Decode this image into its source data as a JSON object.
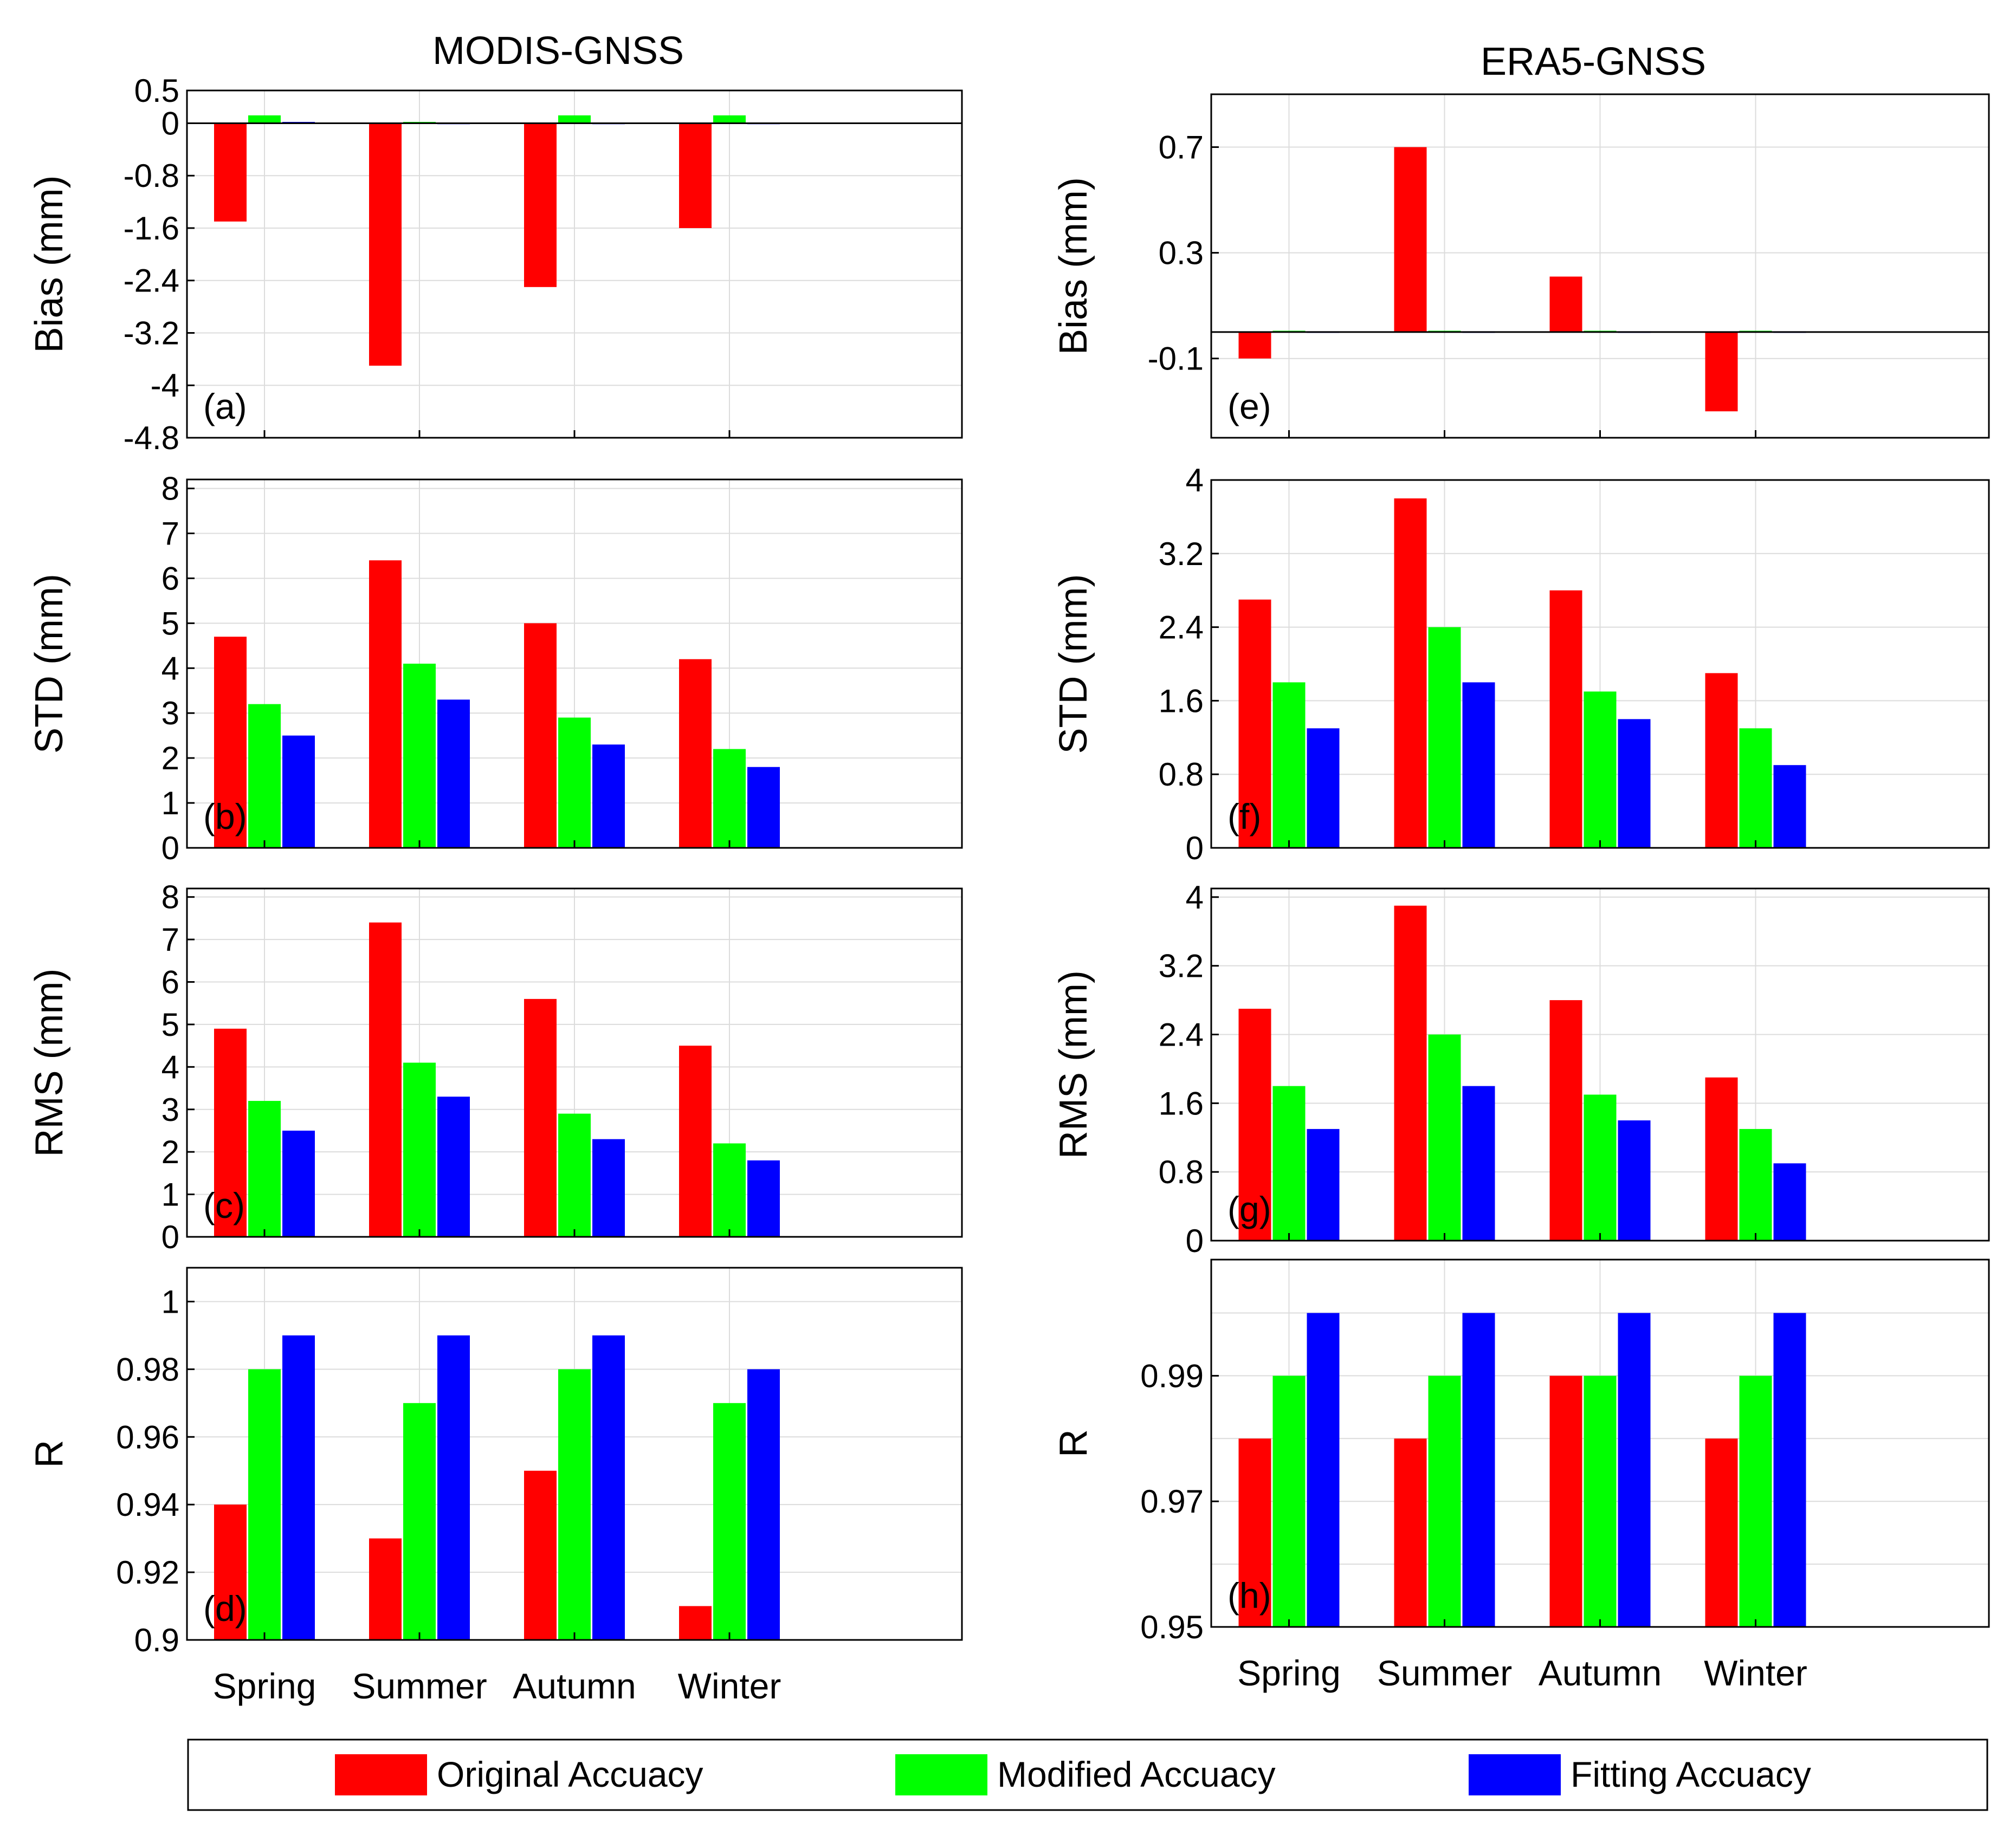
{
  "figure": {
    "left_title": "MODIS-GNSS",
    "right_title": "ERA5-GNSS"
  },
  "legend": {
    "items": [
      {
        "label": "Original Accuacy",
        "color": "#ff0000"
      },
      {
        "label": "Modified Accuacy",
        "color": "#00ff00"
      },
      {
        "label": "Fitting Accuacy",
        "color": "#0000ff"
      }
    ],
    "placement": "bottom"
  },
  "chart_data": [
    {
      "id": "a",
      "type": "bar",
      "panel_label": "(a)",
      "ylabel": "Bias (mm)",
      "categories": [
        "Spring",
        "Summer",
        "Autumn",
        "Winter"
      ],
      "ylim": [
        -4.8,
        0.5
      ],
      "yticks": [
        "0.5",
        "0",
        "-0.8",
        "-1.6",
        "-2.4",
        "-3.2",
        "-4",
        "-4.8"
      ],
      "ytick_values": [
        0.5,
        0,
        -0.8,
        -1.6,
        -2.4,
        -3.2,
        -4,
        -4.8
      ],
      "baseline": 0,
      "series": [
        {
          "values": [
            -1.5,
            -3.7,
            -2.5,
            -1.6
          ]
        },
        {
          "values": [
            0.12,
            0.02,
            0.12,
            0.12
          ]
        },
        {
          "values": [
            0.02,
            0.01,
            0.01,
            0.01
          ]
        }
      ],
      "grid": true,
      "show_xticklabels": false
    },
    {
      "id": "b",
      "type": "bar",
      "panel_label": "(b)",
      "ylabel": "STD (mm)",
      "categories": [
        "Spring",
        "Summer",
        "Autumn",
        "Winter"
      ],
      "ylim": [
        0,
        8.2
      ],
      "yticks": [
        "0",
        "1",
        "2",
        "3",
        "4",
        "5",
        "6",
        "7",
        "8"
      ],
      "ytick_values": [
        0,
        1,
        2,
        3,
        4,
        5,
        6,
        7,
        8
      ],
      "baseline": 0,
      "series": [
        {
          "values": [
            4.7,
            6.4,
            5.0,
            4.2
          ]
        },
        {
          "values": [
            3.2,
            4.1,
            2.9,
            2.2
          ]
        },
        {
          "values": [
            2.5,
            3.3,
            2.3,
            1.8
          ]
        }
      ],
      "grid": true,
      "show_xticklabels": false
    },
    {
      "id": "c",
      "type": "bar",
      "panel_label": "(c)",
      "ylabel": "RMS (mm)",
      "categories": [
        "Spring",
        "Summer",
        "Autumn",
        "Winter"
      ],
      "ylim": [
        0,
        8.2
      ],
      "yticks": [
        "0",
        "1",
        "2",
        "3",
        "4",
        "5",
        "6",
        "7",
        "8"
      ],
      "ytick_values": [
        0,
        1,
        2,
        3,
        4,
        5,
        6,
        7,
        8
      ],
      "baseline": 0,
      "series": [
        {
          "values": [
            4.9,
            7.4,
            5.6,
            4.5
          ]
        },
        {
          "values": [
            3.2,
            4.1,
            2.9,
            2.2
          ]
        },
        {
          "values": [
            2.5,
            3.3,
            2.3,
            1.8
          ]
        }
      ],
      "grid": true,
      "show_xticklabels": false
    },
    {
      "id": "d",
      "type": "bar",
      "panel_label": "(d)",
      "ylabel": "R",
      "categories": [
        "Spring",
        "Summer",
        "Autumn",
        "Winter"
      ],
      "ylim": [
        0.9,
        1.01
      ],
      "yticks": [
        "0.9",
        "0.92",
        "0.94",
        "0.96",
        "0.98",
        "1"
      ],
      "ytick_values": [
        0.9,
        0.92,
        0.94,
        0.96,
        0.98,
        1.0
      ],
      "baseline": 0.9,
      "series": [
        {
          "values": [
            0.94,
            0.93,
            0.95,
            0.91
          ]
        },
        {
          "values": [
            0.98,
            0.97,
            0.98,
            0.97
          ]
        },
        {
          "values": [
            0.99,
            0.99,
            0.99,
            0.98
          ]
        }
      ],
      "grid": true,
      "show_xticklabels": true
    },
    {
      "id": "e",
      "type": "bar",
      "panel_label": "(e)",
      "ylabel": "Bias (mm)",
      "categories": [
        "Spring",
        "Summer",
        "Autumn",
        "Winter"
      ],
      "ylim": [
        -0.4,
        0.9
      ],
      "yticks": [
        "0.7",
        "0.3",
        "-0.1"
      ],
      "ytick_values": [
        0.7,
        0.3,
        -0.1
      ],
      "baseline": 0,
      "series": [
        {
          "values": [
            -0.1,
            0.7,
            0.21,
            -0.3
          ]
        },
        {
          "values": [
            0.005,
            0.005,
            0.005,
            0.005
          ]
        },
        {
          "values": [
            0.003,
            0.003,
            0.003,
            0.003
          ]
        }
      ],
      "grid": true,
      "show_xticklabels": false
    },
    {
      "id": "f",
      "type": "bar",
      "panel_label": "(f)",
      "ylabel": "STD (mm)",
      "categories": [
        "Spring",
        "Summer",
        "Autumn",
        "Winter"
      ],
      "ylim": [
        0,
        4.0
      ],
      "yticks": [
        "0",
        "0.8",
        "1.6",
        "2.4",
        "3.2",
        "4"
      ],
      "ytick_values": [
        0,
        0.8,
        1.6,
        2.4,
        3.2,
        4.0
      ],
      "baseline": 0,
      "series": [
        {
          "values": [
            2.7,
            3.8,
            2.8,
            1.9
          ]
        },
        {
          "values": [
            1.8,
            2.4,
            1.7,
            1.3
          ]
        },
        {
          "values": [
            1.3,
            1.8,
            1.4,
            0.9
          ]
        }
      ],
      "grid": true,
      "show_xticklabels": false
    },
    {
      "id": "g",
      "type": "bar",
      "panel_label": "(g)",
      "ylabel": "RMS (mm)",
      "categories": [
        "Spring",
        "Summer",
        "Autumn",
        "Winter"
      ],
      "ylim": [
        0,
        4.1
      ],
      "yticks": [
        "0",
        "0.8",
        "1.6",
        "2.4",
        "3.2",
        "4"
      ],
      "ytick_values": [
        0,
        0.8,
        1.6,
        2.4,
        3.2,
        4.0
      ],
      "baseline": 0,
      "series": [
        {
          "values": [
            2.7,
            3.9,
            2.8,
            1.9
          ]
        },
        {
          "values": [
            1.8,
            2.4,
            1.7,
            1.3
          ]
        },
        {
          "values": [
            1.3,
            1.8,
            1.4,
            0.9
          ]
        }
      ],
      "grid": true,
      "show_xticklabels": false
    },
    {
      "id": "h",
      "type": "bar",
      "panel_label": "(h)",
      "ylabel": "R",
      "categories": [
        "Spring",
        "Summer",
        "Autumn",
        "Winter"
      ],
      "ylim": [
        0.95,
        1.0085
      ],
      "yticks": [
        "0.95",
        "0.97",
        "0.99"
      ],
      "ytick_values": [
        0.95,
        0.97,
        0.99
      ],
      "extra_gridlines": [
        0.96,
        0.98,
        1.0
      ],
      "baseline": 0.95,
      "series": [
        {
          "values": [
            0.98,
            0.98,
            0.99,
            0.98
          ]
        },
        {
          "values": [
            0.99,
            0.99,
            0.99,
            0.99
          ]
        },
        {
          "values": [
            1.0,
            1.0,
            1.0,
            1.0
          ]
        }
      ],
      "grid": true,
      "show_xticklabels": true
    }
  ]
}
